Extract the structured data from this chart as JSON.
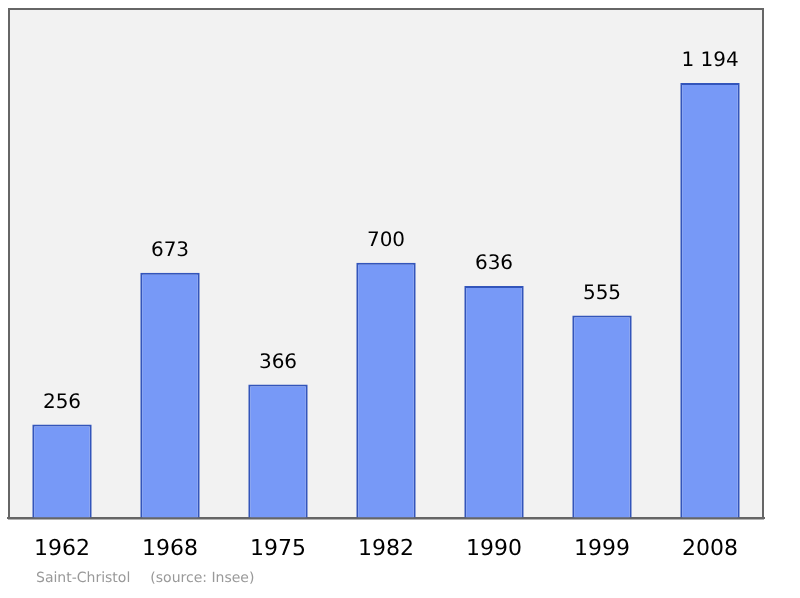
{
  "chart_data": {
    "type": "bar",
    "categories": [
      "1962",
      "1968",
      "1975",
      "1982",
      "1990",
      "1999",
      "2008"
    ],
    "values": [
      256,
      673,
      366,
      700,
      636,
      555,
      1194
    ],
    "value_labels": [
      "256",
      "673",
      "366",
      "700",
      "636",
      "555",
      "1 194"
    ],
    "color": "#7799f7",
    "grid": false,
    "legend": false,
    "annotations": [
      "Saint-Christol",
      "(source: Insee)"
    ]
  }
}
